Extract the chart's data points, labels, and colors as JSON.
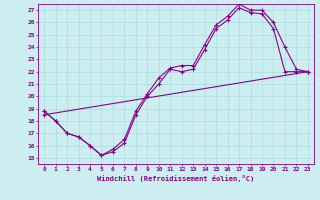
{
  "xlabel": "Windchill (Refroidissement éolien,°C)",
  "ylabel": "",
  "xlim": [
    -0.5,
    23.5
  ],
  "ylim": [
    14.5,
    27.5
  ],
  "xticks": [
    0,
    1,
    2,
    3,
    4,
    5,
    6,
    7,
    8,
    9,
    10,
    11,
    12,
    13,
    14,
    15,
    16,
    17,
    18,
    19,
    20,
    21,
    22,
    23
  ],
  "yticks": [
    15,
    16,
    17,
    18,
    19,
    20,
    21,
    22,
    23,
    24,
    25,
    26,
    27
  ],
  "bg_color": "#cdeef0",
  "line_color": "#880088",
  "grid_color": "#aadddd",
  "line1_x": [
    0,
    1,
    2,
    3,
    4,
    5,
    6,
    7,
    8,
    9,
    10,
    11,
    12,
    13,
    14,
    15,
    16,
    17,
    18,
    19,
    20,
    21,
    22,
    23
  ],
  "line1_y": [
    18.8,
    18.0,
    17.0,
    16.7,
    16.0,
    15.2,
    15.5,
    16.2,
    18.5,
    20.0,
    21.0,
    22.2,
    22.0,
    22.2,
    23.8,
    25.5,
    26.2,
    27.2,
    26.8,
    26.7,
    25.5,
    22.0,
    22.0,
    22.0
  ],
  "line2_x": [
    0,
    1,
    2,
    3,
    4,
    5,
    6,
    7,
    8,
    9,
    10,
    11,
    12,
    13,
    14,
    15,
    16,
    17,
    18,
    19,
    20,
    21,
    22,
    23
  ],
  "line2_y": [
    18.8,
    18.0,
    17.0,
    16.7,
    16.0,
    15.2,
    15.7,
    16.5,
    18.8,
    20.2,
    21.5,
    22.3,
    22.5,
    22.5,
    24.2,
    25.8,
    26.5,
    27.5,
    27.0,
    27.0,
    26.0,
    24.0,
    22.2,
    22.0
  ],
  "line3_x": [
    0,
    23
  ],
  "line3_y": [
    18.5,
    22.0
  ]
}
